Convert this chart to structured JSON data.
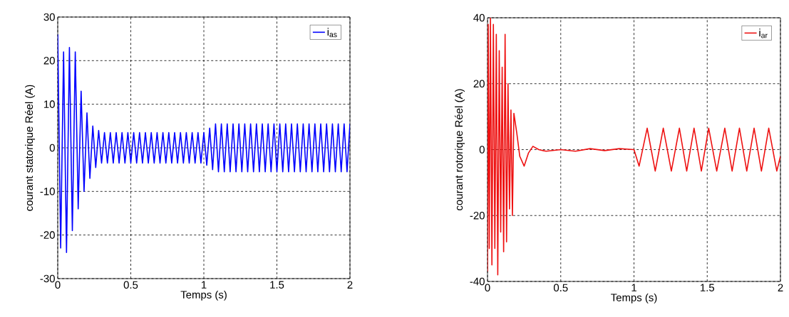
{
  "chart_data": [
    {
      "type": "line",
      "xlabel": "Temps (s)",
      "ylabel": "courant statorique Réel (A)",
      "xlim": [
        0,
        2
      ],
      "ylim": [
        -30,
        30
      ],
      "xticks": [
        0,
        0.5,
        1,
        1.5,
        2
      ],
      "yticks": [
        -30,
        -20,
        -10,
        0,
        10,
        20,
        30
      ],
      "grid": true,
      "legend": "top right",
      "series": [
        {
          "name": "i$_{as}$",
          "color": "#0000ff",
          "x": [
            0,
            0.02,
            0.04,
            0.06,
            0.08,
            0.1,
            0.12,
            0.14,
            0.16,
            0.18,
            0.2,
            0.22,
            0.24,
            0.26,
            0.28,
            0.3,
            0.32,
            0.34,
            0.36,
            0.38,
            0.4,
            0.42,
            0.44,
            0.46,
            0.48,
            0.5,
            0.52,
            0.54,
            0.56,
            0.58,
            0.6,
            0.62,
            0.64,
            0.66,
            0.68,
            0.7,
            0.72,
            0.74,
            0.76,
            0.78,
            0.8,
            0.82,
            0.84,
            0.86,
            0.88,
            0.9,
            0.92,
            0.94,
            0.96,
            0.98,
            1.0,
            1.02,
            1.04,
            1.06,
            1.08,
            1.1,
            1.12,
            1.14,
            1.16,
            1.18,
            1.2,
            1.22,
            1.24,
            1.26,
            1.28,
            1.3,
            1.32,
            1.34,
            1.36,
            1.38,
            1.4,
            1.42,
            1.44,
            1.46,
            1.48,
            1.5,
            1.52,
            1.54,
            1.56,
            1.58,
            1.6,
            1.62,
            1.64,
            1.66,
            1.68,
            1.7,
            1.72,
            1.74,
            1.76,
            1.78,
            1.8,
            1.82,
            1.84,
            1.86,
            1.88,
            1.9,
            1.92,
            1.94,
            1.96,
            1.98,
            2.0
          ],
          "values": [
            26,
            -23,
            22,
            -24,
            23,
            -19,
            22,
            -14,
            13,
            -10,
            8,
            -7,
            5,
            -4.5,
            4,
            -3.5,
            3.5,
            -3.5,
            3.5,
            -3.5,
            3.5,
            -3.5,
            3.5,
            -3.5,
            3.5,
            -3.5,
            3.5,
            -3.5,
            3.5,
            -3.5,
            3.5,
            -3.5,
            3.5,
            -3.5,
            3.5,
            -3.5,
            3.5,
            -3.5,
            3.5,
            -3.5,
            3.5,
            -3.5,
            3.5,
            -3.5,
            3.5,
            -3.5,
            3.5,
            -3.5,
            3.5,
            -3.5,
            3.5,
            -4,
            4.5,
            -5,
            5.5,
            -5.5,
            5.5,
            -5.5,
            5.5,
            -5.5,
            5.5,
            -5.5,
            5.5,
            -5.5,
            5.5,
            -5.5,
            5.5,
            -5.5,
            5.5,
            -5.5,
            5.5,
            -5.5,
            5.5,
            -5.5,
            5.5,
            -5.5,
            5.5,
            -5.5,
            5.5,
            -5.5,
            5.5,
            -5.5,
            5.5,
            -5.5,
            5.5,
            -5.5,
            5.5,
            -5.5,
            5.5,
            -5.5,
            5.5,
            -5.5,
            5.5,
            -5.5,
            5.5,
            -5.5,
            5.5,
            -5.5,
            5.5,
            -5.5,
            5.5
          ]
        }
      ]
    },
    {
      "type": "line",
      "xlabel": "Temps (s)",
      "ylabel": "courant rotorique Réel (A)",
      "xlim": [
        0,
        2
      ],
      "ylim": [
        -40,
        40
      ],
      "xticks": [
        0,
        0.5,
        1,
        1.5,
        2
      ],
      "yticks": [
        -40,
        -20,
        0,
        20,
        40
      ],
      "grid": true,
      "legend": "top right",
      "series": [
        {
          "name": "i$_{ar}$",
          "color": "#ee1111",
          "x": [
            0,
            0.005,
            0.012,
            0.02,
            0.03,
            0.04,
            0.05,
            0.06,
            0.07,
            0.08,
            0.09,
            0.1,
            0.11,
            0.12,
            0.13,
            0.14,
            0.15,
            0.16,
            0.17,
            0.18,
            0.2,
            0.22,
            0.25,
            0.28,
            0.31,
            0.35,
            0.4,
            0.5,
            0.6,
            0.7,
            0.8,
            0.9,
            1.0,
            1.035,
            1.09,
            1.145,
            1.2,
            1.255,
            1.31,
            1.36,
            1.41,
            1.46,
            1.51,
            1.565,
            1.62,
            1.67,
            1.72,
            1.77,
            1.82,
            1.87,
            1.92,
            1.975,
            2.0
          ],
          "values": [
            -37,
            38,
            -30,
            40,
            -35,
            38,
            -30,
            35,
            -38,
            30,
            -25,
            25,
            -31,
            35,
            -28,
            20,
            -18,
            12,
            -20,
            11,
            5,
            -2,
            -5,
            -1,
            1,
            0,
            -0.5,
            0,
            -0.5,
            0.3,
            -0.3,
            0.3,
            0,
            -5,
            6.5,
            -6.5,
            6.5,
            -6.5,
            6.5,
            -6.5,
            6.5,
            -6.5,
            6.5,
            -6.5,
            6.5,
            -6.5,
            6.5,
            -6.5,
            6.5,
            -6.5,
            6.5,
            -6.5,
            -2
          ]
        }
      ]
    }
  ]
}
